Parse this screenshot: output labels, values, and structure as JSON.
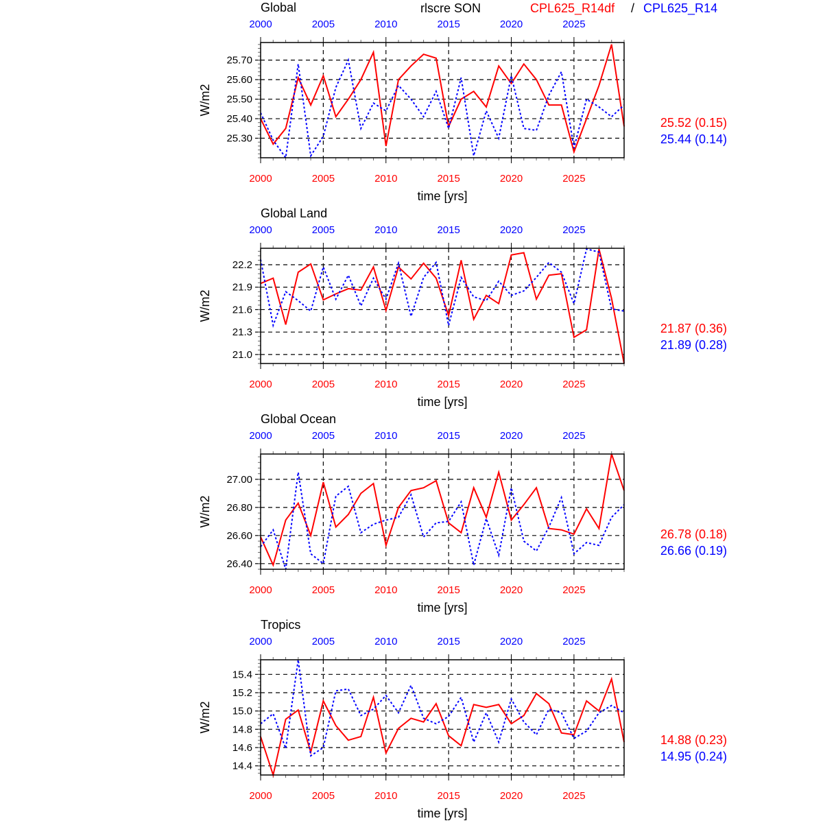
{
  "header": {
    "variable_season": "rlscre SON",
    "model_a": "CPL625_R14df",
    "separator": "/",
    "model_b": "CPL625_R14"
  },
  "colors": {
    "model_a": "#ff0000",
    "model_b": "#0000ff",
    "axis": "#000000"
  },
  "chart_data": [
    {
      "type": "line",
      "title": "Global",
      "xlabel": "time [yrs]",
      "ylabel": "W/m2",
      "xlim": [
        2000,
        2029
      ],
      "ylim": [
        25.2,
        25.79
      ],
      "grid": true,
      "x_ticks": [
        "2000",
        "2005",
        "2010",
        "2015",
        "2020",
        "2025"
      ],
      "y_ticks": [
        25.3,
        25.4,
        25.5,
        25.6,
        25.7
      ],
      "y_tick_labels": [
        "25.30",
        "25.40",
        "25.50",
        "25.60",
        "25.70"
      ],
      "stats": [
        "25.52 (0.15)",
        "25.44 (0.14)"
      ],
      "series": [
        {
          "name": "CPL625_R14df",
          "style": "solid",
          "values": [
            25.4,
            25.27,
            25.35,
            25.61,
            25.47,
            25.62,
            25.41,
            25.5,
            25.6,
            25.74,
            25.26,
            25.6,
            25.67,
            25.73,
            25.71,
            25.36,
            25.5,
            25.54,
            25.46,
            25.67,
            25.58,
            25.68,
            25.6,
            25.47,
            25.47,
            25.23,
            25.4,
            25.57,
            25.78,
            25.36
          ]
        },
        {
          "name": "CPL625_R14",
          "style": "dotted",
          "values": [
            25.43,
            25.29,
            25.2,
            25.68,
            25.21,
            25.31,
            25.56,
            25.7,
            25.35,
            25.48,
            25.44,
            25.57,
            25.5,
            25.41,
            25.54,
            25.35,
            25.61,
            25.21,
            25.44,
            25.3,
            25.62,
            25.35,
            25.34,
            25.52,
            25.64,
            25.25,
            25.5,
            25.46,
            25.41,
            25.47
          ]
        }
      ]
    },
    {
      "type": "line",
      "title": "Global Land",
      "xlabel": "time [yrs]",
      "ylabel": "W/m2",
      "xlim": [
        2000,
        2029
      ],
      "ylim": [
        20.88,
        22.42
      ],
      "grid": true,
      "x_ticks": [
        "2000",
        "2005",
        "2010",
        "2015",
        "2020",
        "2025"
      ],
      "y_ticks": [
        21.0,
        21.3,
        21.6,
        21.9,
        22.2
      ],
      "y_tick_labels": [
        "21.0",
        "21.3",
        "21.6",
        "21.9",
        "22.2"
      ],
      "stats": [
        "21.87 (0.36)",
        "21.89 (0.28)"
      ],
      "series": [
        {
          "name": "CPL625_R14df",
          "style": "solid",
          "values": [
            21.95,
            22.02,
            21.4,
            22.1,
            22.21,
            21.73,
            21.81,
            21.88,
            21.86,
            22.17,
            21.59,
            22.17,
            22.01,
            22.22,
            22.02,
            21.52,
            22.26,
            21.47,
            21.79,
            21.68,
            22.33,
            22.36,
            21.74,
            22.06,
            22.08,
            21.23,
            21.33,
            22.41,
            21.75,
            20.88
          ]
        },
        {
          "name": "CPL625_R14",
          "style": "dotted",
          "values": [
            22.27,
            21.39,
            21.84,
            21.72,
            21.58,
            22.17,
            21.74,
            22.06,
            21.65,
            22.02,
            21.74,
            22.22,
            21.51,
            22.03,
            22.23,
            21.39,
            22.03,
            21.77,
            21.72,
            21.98,
            21.79,
            21.85,
            22.03,
            22.23,
            22.1,
            21.68,
            22.41,
            22.37,
            21.61,
            21.58
          ]
        }
      ]
    },
    {
      "type": "line",
      "title": "Global Ocean",
      "xlabel": "time [yrs]",
      "ylabel": "W/m2",
      "xlim": [
        2000,
        2029
      ],
      "ylim": [
        26.36,
        27.18
      ],
      "grid": true,
      "x_ticks": [
        "2000",
        "2005",
        "2010",
        "2015",
        "2020",
        "2025"
      ],
      "y_ticks": [
        26.4,
        26.6,
        26.8,
        27.0
      ],
      "y_tick_labels": [
        "26.40",
        "26.60",
        "26.80",
        "27.00"
      ],
      "stats": [
        "26.78 (0.18)",
        "26.66 (0.19)"
      ],
      "series": [
        {
          "name": "CPL625_R14df",
          "style": "solid",
          "values": [
            26.59,
            26.39,
            26.71,
            26.83,
            26.6,
            26.98,
            26.66,
            26.75,
            26.9,
            26.97,
            26.53,
            26.8,
            26.92,
            26.94,
            26.99,
            26.69,
            26.62,
            26.94,
            26.73,
            27.05,
            26.71,
            26.82,
            26.94,
            26.65,
            26.64,
            26.61,
            26.79,
            26.65,
            27.18,
            26.92
          ]
        },
        {
          "name": "CPL625_R14",
          "style": "dotted",
          "values": [
            26.52,
            26.64,
            26.36,
            27.05,
            26.47,
            26.4,
            26.88,
            26.95,
            26.62,
            26.68,
            26.71,
            26.73,
            26.89,
            26.59,
            26.69,
            26.7,
            26.84,
            26.39,
            26.72,
            26.46,
            26.94,
            26.56,
            26.49,
            26.66,
            26.87,
            26.47,
            26.55,
            26.53,
            26.73,
            26.82
          ]
        }
      ]
    },
    {
      "type": "line",
      "title": "Tropics",
      "xlabel": "time [yrs]",
      "ylabel": "W/m2",
      "xlim": [
        2000,
        2029
      ],
      "ylim": [
        14.3,
        15.56
      ],
      "grid": true,
      "x_ticks": [
        "2000",
        "2005",
        "2010",
        "2015",
        "2020",
        "2025"
      ],
      "y_ticks": [
        14.4,
        14.6,
        14.8,
        15.0,
        15.2,
        15.4
      ],
      "y_tick_labels": [
        "14.4",
        "14.6",
        "14.8",
        "15.0",
        "15.2",
        "15.4"
      ],
      "stats": [
        "14.88 (0.23)",
        "14.95 (0.24)"
      ],
      "series": [
        {
          "name": "CPL625_R14df",
          "style": "solid",
          "values": [
            14.72,
            14.3,
            14.91,
            15.01,
            14.55,
            15.11,
            14.84,
            14.68,
            14.72,
            15.15,
            14.54,
            14.81,
            14.92,
            14.88,
            15.08,
            14.73,
            14.62,
            15.07,
            15.04,
            15.07,
            14.86,
            14.95,
            15.19,
            15.08,
            14.76,
            14.74,
            15.11,
            15.0,
            15.35,
            14.66
          ]
        },
        {
          "name": "CPL625_R14",
          "style": "dotted",
          "values": [
            14.86,
            14.97,
            14.59,
            15.56,
            14.51,
            14.6,
            15.22,
            15.24,
            14.95,
            15.02,
            15.17,
            14.98,
            15.28,
            14.92,
            14.86,
            14.94,
            15.15,
            14.66,
            14.98,
            14.66,
            15.13,
            14.88,
            14.74,
            15.02,
            14.98,
            14.7,
            14.78,
            14.98,
            15.06,
            14.98
          ]
        }
      ]
    }
  ]
}
